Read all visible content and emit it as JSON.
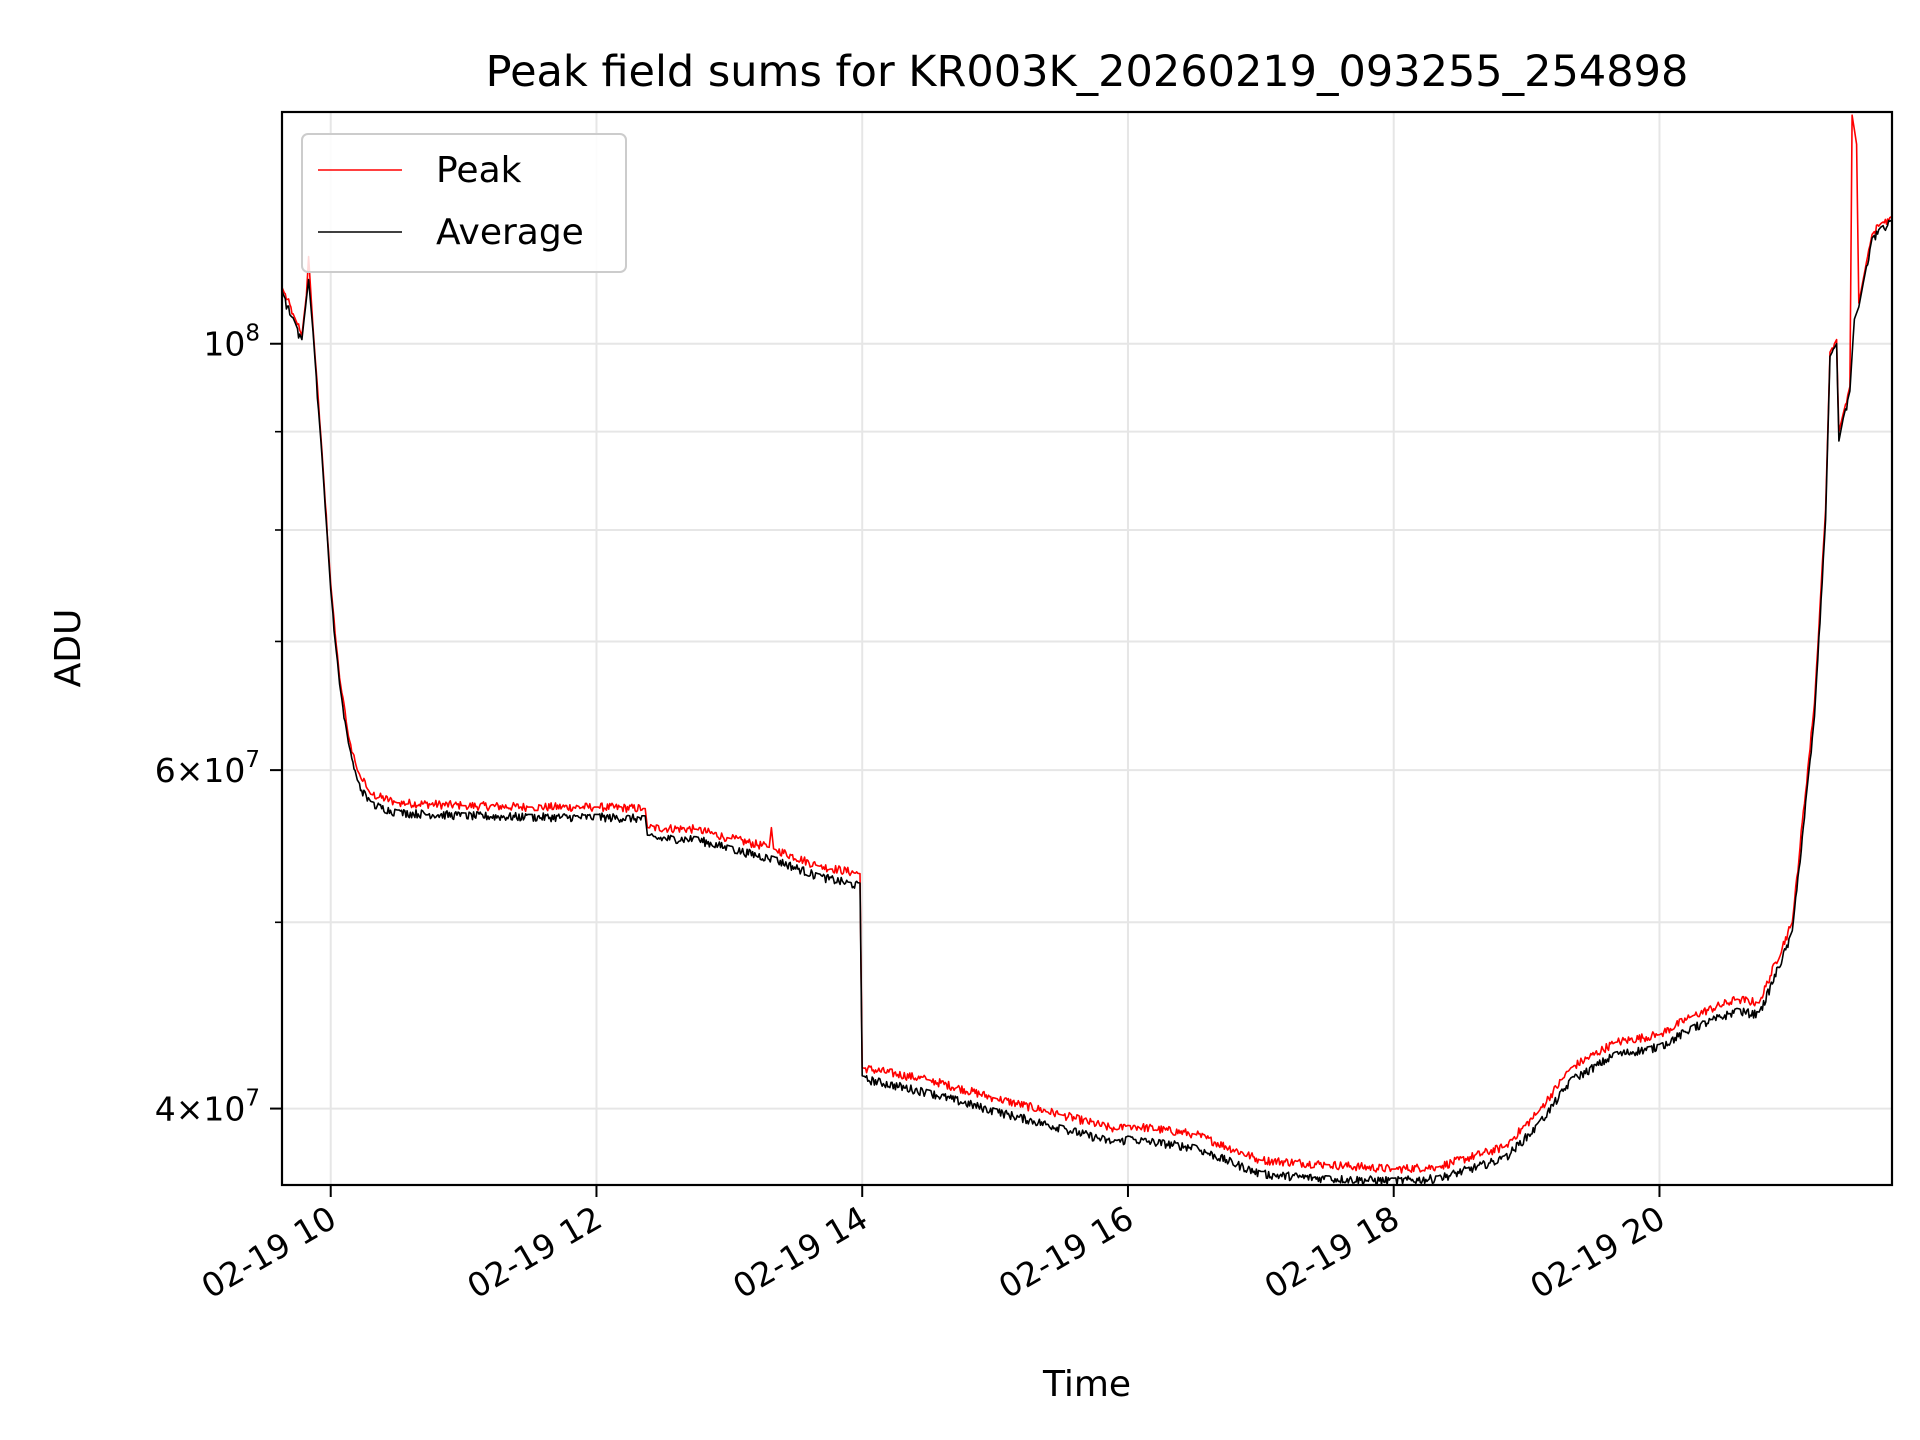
{
  "chart_data": {
    "type": "line",
    "title": "Peak field sums for KR003K_20260219_093255_254898",
    "xlabel": "Time",
    "ylabel": "ADU",
    "y_scale": "log",
    "xlim": [
      "2026-02-19 09:38",
      "2026-02-19 21:45"
    ],
    "ylim": [
      36500000,
      132000000
    ],
    "grid": true,
    "legend_position": "top-left",
    "x_ticks": [
      {
        "value": "2026-02-19 10:00",
        "label": "02-19 10"
      },
      {
        "value": "2026-02-19 12:00",
        "label": "02-19 12"
      },
      {
        "value": "2026-02-19 14:00",
        "label": "02-19 14"
      },
      {
        "value": "2026-02-19 16:00",
        "label": "02-19 16"
      },
      {
        "value": "2026-02-19 18:00",
        "label": "02-19 18"
      },
      {
        "value": "2026-02-19 20:00",
        "label": "02-19 20"
      }
    ],
    "y_major_ticks": [
      {
        "value": 40000000,
        "mantissa": "4",
        "exponent": "7"
      },
      {
        "value": 60000000,
        "mantissa": "6",
        "exponent": "7"
      },
      {
        "value": 100000000,
        "mantissa": "",
        "exponent": "8"
      }
    ],
    "y_minor_ticks": [
      50000000,
      70000000,
      80000000,
      90000000
    ],
    "series": [
      {
        "name": "Peak",
        "color": "#ff0000",
        "points": [
          [
            "2026-02-19 09:38",
            107000000
          ],
          [
            "2026-02-19 09:44",
            103000000
          ],
          [
            "2026-02-19 09:47",
            101000000
          ],
          [
            "2026-02-19 09:49",
            106000000
          ],
          [
            "2026-02-19 09:50",
            111000000
          ],
          [
            "2026-02-19 09:52",
            102000000
          ],
          [
            "2026-02-19 09:56",
            88000000
          ],
          [
            "2026-02-19 10:00",
            75000000
          ],
          [
            "2026-02-19 10:04",
            67000000
          ],
          [
            "2026-02-19 10:08",
            62500000
          ],
          [
            "2026-02-19 10:12",
            60000000
          ],
          [
            "2026-02-19 10:18",
            58300000
          ],
          [
            "2026-02-19 10:30",
            57700000
          ],
          [
            "2026-02-19 11:00",
            57500000
          ],
          [
            "2026-02-19 11:30",
            57400000
          ],
          [
            "2026-02-19 12:00",
            57400000
          ],
          [
            "2026-02-19 12:22",
            57300000
          ],
          [
            "2026-02-19 12:23",
            56000000
          ],
          [
            "2026-02-19 12:45",
            55900000
          ],
          [
            "2026-02-19 13:00",
            55300000
          ],
          [
            "2026-02-19 13:18",
            54700000
          ],
          [
            "2026-02-19 13:19",
            56000000
          ],
          [
            "2026-02-19 13:20",
            54600000
          ],
          [
            "2026-02-19 13:40",
            53500000
          ],
          [
            "2026-02-19 13:59",
            53000000
          ],
          [
            "2026-02-19 14:00",
            42000000
          ],
          [
            "2026-02-19 14:30",
            41400000
          ],
          [
            "2026-02-19 15:00",
            40500000
          ],
          [
            "2026-02-19 15:30",
            39700000
          ],
          [
            "2026-02-19 15:55",
            39000000
          ],
          [
            "2026-02-19 16:00",
            39200000
          ],
          [
            "2026-02-19 16:30",
            38800000
          ],
          [
            "2026-02-19 17:00",
            37600000
          ],
          [
            "2026-02-19 17:30",
            37400000
          ],
          [
            "2026-02-19 18:00",
            37200000
          ],
          [
            "2026-02-19 18:20",
            37300000
          ],
          [
            "2026-02-19 18:50",
            38200000
          ],
          [
            "2026-02-19 19:05",
            39800000
          ],
          [
            "2026-02-19 19:20",
            42000000
          ],
          [
            "2026-02-19 19:40",
            43300000
          ],
          [
            "2026-02-19 20:00",
            43700000
          ],
          [
            "2026-02-19 20:15",
            44700000
          ],
          [
            "2026-02-19 20:35",
            45600000
          ],
          [
            "2026-02-19 20:45",
            45400000
          ],
          [
            "2026-02-19 21:00",
            50000000
          ],
          [
            "2026-02-19 21:10",
            65000000
          ],
          [
            "2026-02-19 21:15",
            82000000
          ],
          [
            "2026-02-19 21:17",
            99000000
          ],
          [
            "2026-02-19 21:20",
            100500000
          ],
          [
            "2026-02-19 21:21",
            90000000
          ],
          [
            "2026-02-19 21:23",
            92000000
          ],
          [
            "2026-02-19 21:26",
            95000000
          ],
          [
            "2026-02-19 21:27",
            131500000
          ],
          [
            "2026-02-19 21:29",
            127000000
          ],
          [
            "2026-02-19 21:30",
            105000000
          ],
          [
            "2026-02-19 21:32",
            108000000
          ],
          [
            "2026-02-19 21:36",
            114000000
          ],
          [
            "2026-02-19 21:40",
            115500000
          ],
          [
            "2026-02-19 21:45",
            116500000
          ]
        ]
      },
      {
        "name": "Average",
        "color": "#000000",
        "points": [
          [
            "2026-02-19 09:38",
            106500000
          ],
          [
            "2026-02-19 09:44",
            102500000
          ],
          [
            "2026-02-19 09:47",
            100500000
          ],
          [
            "2026-02-19 09:49",
            105500000
          ],
          [
            "2026-02-19 09:50",
            108000000
          ],
          [
            "2026-02-19 09:52",
            101500000
          ],
          [
            "2026-02-19 09:56",
            87500000
          ],
          [
            "2026-02-19 10:00",
            74500000
          ],
          [
            "2026-02-19 10:04",
            66500000
          ],
          [
            "2026-02-19 10:08",
            62000000
          ],
          [
            "2026-02-19 10:12",
            59300000
          ],
          [
            "2026-02-19 10:18",
            57800000
          ],
          [
            "2026-02-19 10:30",
            57200000
          ],
          [
            "2026-02-19 11:00",
            57000000
          ],
          [
            "2026-02-19 11:30",
            56900000
          ],
          [
            "2026-02-19 12:00",
            56900000
          ],
          [
            "2026-02-19 12:22",
            56800000
          ],
          [
            "2026-02-19 12:23",
            55500000
          ],
          [
            "2026-02-19 12:45",
            55400000
          ],
          [
            "2026-02-19 13:00",
            54800000
          ],
          [
            "2026-02-19 13:20",
            54100000
          ],
          [
            "2026-02-19 13:40",
            53000000
          ],
          [
            "2026-02-19 13:59",
            52400000
          ],
          [
            "2026-02-19 14:00",
            41600000
          ],
          [
            "2026-02-19 14:30",
            40900000
          ],
          [
            "2026-02-19 15:00",
            40000000
          ],
          [
            "2026-02-19 15:30",
            39200000
          ],
          [
            "2026-02-19 15:55",
            38500000
          ],
          [
            "2026-02-19 16:00",
            38700000
          ],
          [
            "2026-02-19 16:30",
            38300000
          ],
          [
            "2026-02-19 17:00",
            37100000
          ],
          [
            "2026-02-19 17:30",
            36900000
          ],
          [
            "2026-02-19 18:00",
            36800000
          ],
          [
            "2026-02-19 18:20",
            36900000
          ],
          [
            "2026-02-19 18:50",
            37800000
          ],
          [
            "2026-02-19 19:05",
            39300000
          ],
          [
            "2026-02-19 19:20",
            41500000
          ],
          [
            "2026-02-19 19:40",
            42800000
          ],
          [
            "2026-02-19 20:00",
            43200000
          ],
          [
            "2026-02-19 20:15",
            44200000
          ],
          [
            "2026-02-19 20:35",
            45100000
          ],
          [
            "2026-02-19 20:45",
            44900000
          ],
          [
            "2026-02-19 21:00",
            49500000
          ],
          [
            "2026-02-19 21:10",
            64000000
          ],
          [
            "2026-02-19 21:15",
            81000000
          ],
          [
            "2026-02-19 21:17",
            98500000
          ],
          [
            "2026-02-19 21:20",
            100000000
          ],
          [
            "2026-02-19 21:21",
            89000000
          ],
          [
            "2026-02-19 21:23",
            91500000
          ],
          [
            "2026-02-19 21:26",
            94500000
          ],
          [
            "2026-02-19 21:28",
            103000000
          ],
          [
            "2026-02-19 21:30",
            104500000
          ],
          [
            "2026-02-19 21:32",
            107500000
          ],
          [
            "2026-02-19 21:36",
            113500000
          ],
          [
            "2026-02-19 21:40",
            115000000
          ],
          [
            "2026-02-19 21:45",
            116000000
          ]
        ]
      }
    ]
  }
}
